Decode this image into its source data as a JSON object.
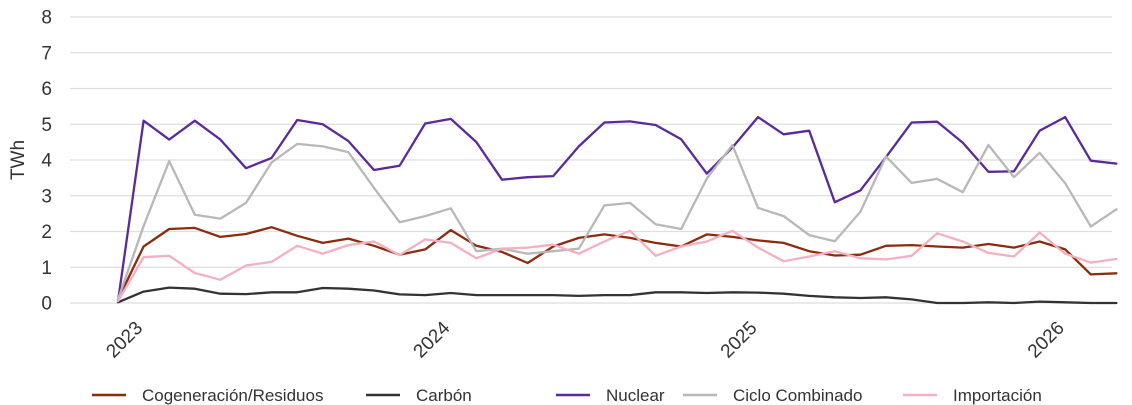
{
  "chart_data": {
    "type": "line",
    "ylabel": "TWh",
    "xlabel": "",
    "ylim": [
      0,
      8
    ],
    "y_ticks": [
      0,
      1,
      2,
      3,
      4,
      5,
      6,
      7,
      8
    ],
    "x_tick_labels": [
      "2023",
      "2024",
      "2025",
      "2026"
    ],
    "x_start": "2022-12",
    "x": [
      "2022-12",
      "2023-01",
      "2023-02",
      "2023-03",
      "2023-04",
      "2023-05",
      "2023-06",
      "2023-07",
      "2023-08",
      "2023-09",
      "2023-10",
      "2023-11",
      "2023-12",
      "2024-01",
      "2024-02",
      "2024-03",
      "2024-04",
      "2024-05",
      "2024-06",
      "2024-07",
      "2024-08",
      "2024-09",
      "2024-10",
      "2024-11",
      "2024-12",
      "2025-01",
      "2025-02",
      "2025-03",
      "2025-04",
      "2025-05",
      "2025-06",
      "2025-07",
      "2025-08",
      "2025-09",
      "2025-10",
      "2025-11",
      "2025-12",
      "2026-01",
      "2026-02",
      "2026-03"
    ],
    "grid": "horizontal",
    "legend_position": "bottom",
    "series": [
      {
        "name": "Cogeneración/Residuos",
        "color": "#8B2C0E",
        "values": [
          0.1,
          1.58,
          2.07,
          2.1,
          1.85,
          1.93,
          2.12,
          1.88,
          1.68,
          1.8,
          1.6,
          1.35,
          1.5,
          2.04,
          1.6,
          1.43,
          1.12,
          1.58,
          1.82,
          1.92,
          1.82,
          1.68,
          1.58,
          1.92,
          1.85,
          1.75,
          1.68,
          1.45,
          1.33,
          1.35,
          1.6,
          1.62,
          1.58,
          1.55,
          1.65,
          1.55,
          1.72,
          1.5,
          0.8,
          0.83
        ]
      },
      {
        "name": "Carbón",
        "color": "#333333",
        "values": [
          0.02,
          0.32,
          0.43,
          0.4,
          0.26,
          0.25,
          0.3,
          0.3,
          0.42,
          0.4,
          0.35,
          0.24,
          0.22,
          0.28,
          0.22,
          0.22,
          0.22,
          0.22,
          0.2,
          0.22,
          0.22,
          0.3,
          0.3,
          0.28,
          0.3,
          0.29,
          0.26,
          0.2,
          0.16,
          0.14,
          0.16,
          0.1,
          0.0,
          0.0,
          0.02,
          0.0,
          0.04,
          0.02,
          0.0,
          0.0
        ]
      },
      {
        "name": "Nuclear",
        "color": "#5B2A9A",
        "values": [
          0.05,
          5.1,
          4.57,
          5.1,
          4.57,
          3.77,
          4.06,
          5.12,
          5.0,
          4.53,
          3.72,
          3.84,
          5.02,
          5.15,
          4.5,
          3.45,
          3.52,
          3.55,
          4.38,
          5.05,
          5.08,
          4.98,
          4.58,
          3.62,
          4.35,
          5.2,
          4.72,
          4.82,
          2.82,
          3.15,
          4.08,
          5.05,
          5.07,
          4.48,
          3.67,
          3.68,
          4.82,
          5.2,
          3.98,
          3.9
        ]
      },
      {
        "name": "Ciclo Combinado",
        "color": "#B8B8B8",
        "values": [
          0.1,
          2.15,
          3.97,
          2.47,
          2.36,
          2.8,
          3.93,
          4.45,
          4.38,
          4.22,
          3.22,
          2.26,
          2.43,
          2.65,
          1.45,
          1.52,
          1.38,
          1.45,
          1.52,
          2.73,
          2.8,
          2.2,
          2.07,
          3.48,
          4.42,
          2.66,
          2.43,
          1.9,
          1.73,
          2.55,
          4.1,
          3.36,
          3.47,
          3.1,
          4.42,
          3.52,
          4.2,
          3.35,
          2.14,
          2.62
        ]
      },
      {
        "name": "Importación",
        "color": "#F4AFC0",
        "values": [
          0.05,
          1.28,
          1.32,
          0.84,
          0.65,
          1.05,
          1.15,
          1.6,
          1.38,
          1.62,
          1.72,
          1.34,
          1.78,
          1.68,
          1.25,
          1.52,
          1.55,
          1.63,
          1.38,
          1.72,
          2.02,
          1.32,
          1.58,
          1.72,
          2.02,
          1.55,
          1.17,
          1.3,
          1.45,
          1.25,
          1.22,
          1.32,
          1.95,
          1.72,
          1.4,
          1.3,
          1.97,
          1.38,
          1.13,
          1.23
        ]
      }
    ]
  }
}
